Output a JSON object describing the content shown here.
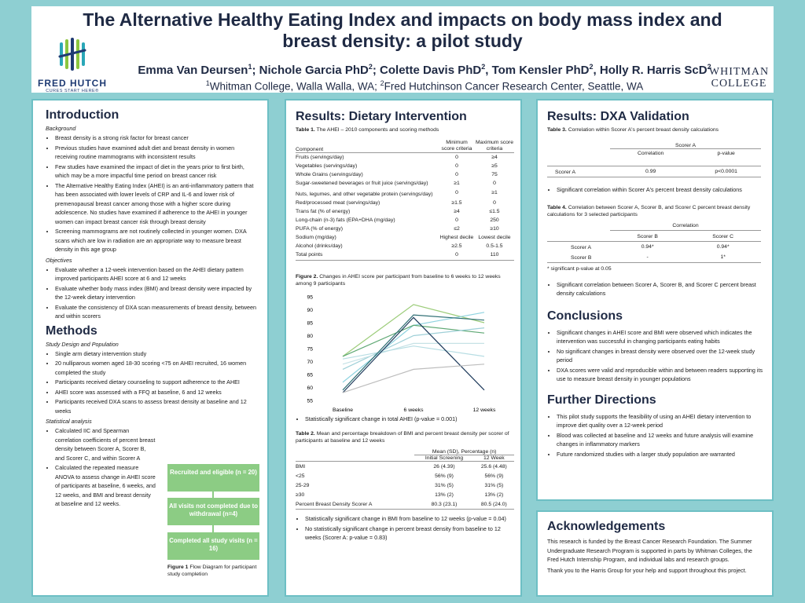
{
  "header": {
    "title": "The Alternative Healthy Eating Index and impacts on body mass index and breast density: a pilot study",
    "authors": [
      {
        "name": "Emma Van Deursen",
        "sup": "1"
      },
      {
        "name": "Nichole Garcia PhD",
        "sup": "2"
      },
      {
        "name": "Colette Davis PhD",
        "sup": "2"
      },
      {
        "name": "Tom Kensler PhD",
        "sup": "2"
      },
      {
        "name": "Holly R. Harris ScD",
        "sup": "2"
      }
    ],
    "affiliation_1_sup": "1",
    "affiliation_1": "Whitman College, Walla Walla, WA; ",
    "affiliation_2_sup": "2",
    "affiliation_2": "Fred Hutchinson Cancer Research Center, Seattle, WA",
    "logo_left_line1": "FRED HUTCH",
    "logo_left_line2": "CURES START HERE®",
    "logo_right_line1": "WHITMAN",
    "logo_right_line2": "COLLEGE"
  },
  "intro": {
    "heading": "Introduction",
    "background_label": "Background",
    "background": [
      "Breast density is a strong risk factor for breast cancer",
      "Previous studies have examined adult diet and breast density in women receiving routine mammograms with inconsistent results",
      "Few studies have examined the impact of diet in the years prior to first birth, which may be a more impactful time period on breast cancer risk",
      "The Alternative Healthy Eating Index (AHEI) is an anti-inflammatory pattern that has been associated with lower levels of CRP and IL-6 and lower risk of premenopausal breast cancer among those with a higher score during adolescence. No studies have examined if adherence to the AHEI in younger women can impact breast cancer risk through breast density",
      "Screening mammograms are not routinely collected in younger women. DXA scans which are low in radiation are an appropriate way to measure breast density in this age group"
    ],
    "objectives_label": "Objectives",
    "objectives": [
      "Evaluate whether a 12-week intervention based on the AHEI dietary pattern improved participants AHEI score at 6 and 12 weeks",
      "Evaluate whether body mass index (BMI) and breast density were impacted by the 12-week dietary intervention",
      "Evaluate the consistency of DXA scan measurements of breast density, between and within scorers"
    ]
  },
  "methods": {
    "heading": "Methods",
    "design_label": "Study Design and Population",
    "design": [
      "Single arm dietary intervention study",
      "20 nulliparous women aged 18-30 scoring <75 on AHEI recruited, 16 women completed the study",
      "Participants received dietary counseling to support adherence to the AHEI",
      "AHEI score was assessed with a FFQ at baseline, 6 and 12 weeks",
      "Participants received DXA scans to assess breast density at baseline and 12 weeks"
    ],
    "stats_label": "Statistical analysis",
    "stats": [
      "Calculated IIC and Spearman correlation coefficients of percent breast density between Scorer A, Scorer B, and Scorer C, and within Scorer A",
      "Calculated the repeated measure ANOVA to assess change in AHEI score of participants at baseline, 6 weeks, and 12 weeks, and BMI and breast density at baseline and 12 weeks."
    ],
    "flow": [
      "Recruited and eligible (n = 20)",
      "All visits not completed due to withdrawal (n=4)",
      "Completed all study visits (n = 16)"
    ],
    "fig1_label": "Figure 1",
    "fig1_text": " Flow Diagram for participant study completion"
  },
  "dietary": {
    "heading": "Results: Dietary Intervention",
    "table1_label": "Table 1.",
    "table1_caption": " The AHEI – 2010 components and scoring methods",
    "table1_headers": [
      "Component",
      "Minimum score criteria",
      "Maximum score criteria"
    ],
    "table1_rows": [
      [
        "Fruits (servings/day)",
        "0",
        "≥4"
      ],
      [
        "Vegetables (servings/day)",
        "0",
        "≥5"
      ],
      [
        "Whole Grains (servings/day)",
        "0",
        "75"
      ],
      [
        "Sugar-sweetened beverages or fruit juice (servings/day)",
        "≥1",
        "0"
      ],
      [
        "Nuts, legumes, and other vegetable protein (servings/day)",
        "0",
        "≥1"
      ],
      [
        "Red/processed meat (servings/day)",
        "≥1.5",
        "0"
      ],
      [
        "Trans fat (% of energy)",
        "≥4",
        "≤1.5"
      ],
      [
        "Long-chain (n-3) fats (EPA+DHA (mg/day)",
        "0",
        "250"
      ],
      [
        "PUFA (% of energy)",
        "≤2",
        "≥10"
      ],
      [
        "Sodium (mg/day)",
        "Highest decile",
        "Lowest decile"
      ],
      [
        "Alcohol (drinks/day)",
        "≥2.5",
        "0.5-1.5"
      ],
      [
        "Total points",
        "0",
        "110"
      ]
    ],
    "fig2_label": "Figure 2.",
    "fig2_caption": " Changes in AHEI score per participant from baseline to 6 weeks to 12 weeks among 9 participants",
    "fig2_bullet": "Statistically significant change in total AHEI (p-value = 0.001)",
    "table2_label": "Table 2.",
    "table2_caption": " Mean and percentage breakdown of BMI and percent breast density per scorer of participants at baseline and 12 weeks",
    "table2_group": "Mean (SD), Percentage (n)",
    "table2_headers": [
      "Initial Screening",
      "12 Week"
    ],
    "table2_rows": [
      [
        "BMI",
        "26 (4.39)",
        "25.6 (4.48)"
      ],
      [
        "<25",
        "56% (9)",
        "56% (9)"
      ],
      [
        "25-29",
        "31% (5)",
        "31% (5)"
      ],
      [
        "≥30",
        "13% (2)",
        "13% (2)"
      ],
      [
        "Percent Breast Density Scorer A",
        "80.3 (23.1)",
        "80.5 (24.0)"
      ]
    ],
    "table2_bullets": [
      "Statistically significant change in BMI from baseline to 12 weeks (p-value = 0.04)",
      "No statistically significant change in percent breast density from baseline to 12 weeks (Scorer A: p-value = 0.83)"
    ]
  },
  "chart_data": {
    "type": "line",
    "categories": [
      "Baseline",
      "6 weeks",
      "12 weeks"
    ],
    "ylim": [
      55,
      95
    ],
    "yticks": [
      55,
      60,
      65,
      70,
      75,
      80,
      85,
      90,
      95
    ],
    "grid": false,
    "series": [
      {
        "values": [
          72,
          92,
          85
        ],
        "color": "#9ccc7a"
      },
      {
        "values": [
          62,
          84,
          89
        ],
        "color": "#8fd3e0"
      },
      {
        "values": [
          72,
          84,
          81
        ],
        "color": "#5fa874"
      },
      {
        "values": [
          67,
          80,
          83
        ],
        "color": "#9fd0d8"
      },
      {
        "values": [
          69,
          77,
          77
        ],
        "color": "#c6e2e6"
      },
      {
        "values": [
          71,
          76,
          72
        ],
        "color": "#b7dde3"
      },
      {
        "values": [
          58,
          87,
          59
        ],
        "color": "#1f3b5c"
      },
      {
        "values": [
          59,
          88,
          86
        ],
        "color": "#2e6e73"
      },
      {
        "values": [
          58,
          67,
          69
        ],
        "color": "#bdbdbd"
      }
    ]
  },
  "dxa": {
    "heading": "Results: DXA Validation",
    "table3_label": "Table 3.",
    "table3_caption": " Correlation within Scorer A's percent breast density calculations",
    "table3_group": "Scorer A",
    "table3_headers": [
      "Correlation",
      "p-value"
    ],
    "table3_row": [
      "Scorer A",
      "0.99",
      "p<0.0001"
    ],
    "table3_bullet": "Significant correlation within Scorer A's percent breast density calculations",
    "table4_label": "Table 4.",
    "table4_caption": " Correlation between Scorer A, Scorer B, and Scorer C percent breast density calculations for 3 selected participants",
    "table4_group": "Correlation",
    "table4_headers": [
      "Scorer B",
      "Scorer C"
    ],
    "table4_rows": [
      [
        "Scorer A",
        "0.94*",
        "0.94*"
      ],
      [
        "Scorer B",
        "-",
        "1*"
      ]
    ],
    "table4_note": "* significant p-value at 0.05",
    "table4_bullet": "Significant correlation between Scorer A, Scorer B, and Scorer C percent breast density calculations"
  },
  "conclusions": {
    "heading": "Conclusions",
    "items": [
      "Significant changes in AHEI score and BMI were observed which indicates the intervention was successful in changing participants eating habits",
      "No significant changes in breast density were observed over the 12-week study period",
      "DXA scores were valid and reproducible within and between readers supporting its use to measure breast density in younger populations"
    ]
  },
  "directions": {
    "heading": "Further Directions",
    "items": [
      "This pilot study supports the feasibility of using an AHEI dietary intervention to improve diet quality over a 12-week period",
      "Blood was collected at baseline and 12 weeks and future analysis will examine changes in inflammatory markers",
      "Future randomized studies with a larger study population are warranted"
    ]
  },
  "ack": {
    "heading": "Acknowledgements",
    "p1": "This research is funded by the Breast Cancer Research Foundation. The Summer Undergraduate Research Program is supported in parts by Whitman Colleges, the Fred Hutch Internship Program, and individual labs and research groups.",
    "p2": "Thank you to the Harris Group for your help and support throughout this project."
  }
}
